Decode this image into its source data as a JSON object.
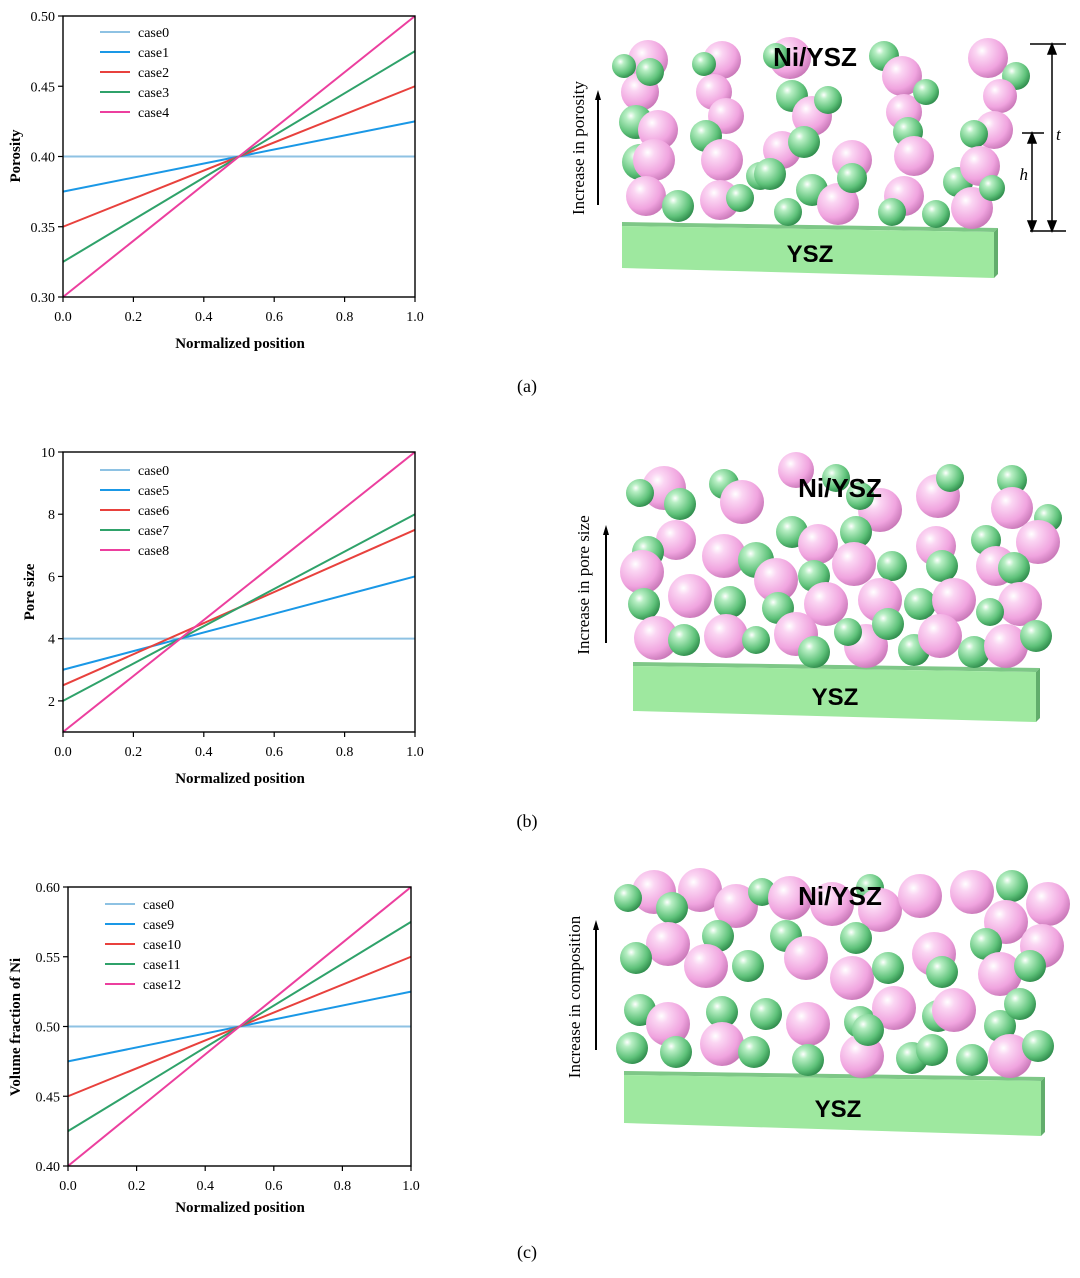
{
  "colors": {
    "case_a": "#8ec2e3",
    "case_b": "#1a98e6",
    "case_c": "#e8413d",
    "case_d": "#2fa26a",
    "case_e": "#ec3f9e",
    "ysz_front": "#9ee89f",
    "ysz_top": "#7ec787",
    "ysz_side": "#62ad6c",
    "sphere_pink": "#f4b2e6",
    "sphere_green": "#6fcf86"
  },
  "panels": [
    {
      "id": "a",
      "caption": "(a)",
      "ni_label": "Ni/YSZ",
      "ysz_label": "YSZ",
      "arrow_label": "Increase in porosity",
      "dim_t": "t",
      "dim_h": "h",
      "chart_data": {
        "type": "line",
        "title": "",
        "xlabel": "Normalized position",
        "ylabel": "Porosity",
        "xlim": [
          0.0,
          1.0
        ],
        "ylim": [
          0.3,
          0.5
        ],
        "xticks": [
          "0.0",
          "0.2",
          "0.4",
          "0.6",
          "0.8",
          "1.0"
        ],
        "yticks": [
          "0.30",
          "0.35",
          "0.40",
          "0.45",
          "0.50"
        ],
        "legend_loc": "top-left",
        "series": [
          {
            "name": "case0",
            "x": [
              0,
              1
            ],
            "y": [
              0.4,
              0.4
            ]
          },
          {
            "name": "case1",
            "x": [
              0,
              1
            ],
            "y": [
              0.375,
              0.425
            ]
          },
          {
            "name": "case2",
            "x": [
              0,
              1
            ],
            "y": [
              0.35,
              0.45
            ]
          },
          {
            "name": "case3",
            "x": [
              0,
              1
            ],
            "y": [
              0.325,
              0.475
            ]
          },
          {
            "name": "case4",
            "x": [
              0,
              1
            ],
            "y": [
              0.3,
              0.5
            ]
          }
        ]
      }
    },
    {
      "id": "b",
      "caption": "(b)",
      "ni_label": "Ni/YSZ",
      "ysz_label": "YSZ",
      "arrow_label": "Increase in pore size",
      "chart_data": {
        "type": "line",
        "title": "",
        "xlabel": "Normalized position",
        "ylabel": "Pore size",
        "xlim": [
          0.0,
          1.0
        ],
        "ylim": [
          1,
          10
        ],
        "xticks": [
          "0.0",
          "0.2",
          "0.4",
          "0.6",
          "0.8",
          "1.0"
        ],
        "yticks": [
          "2",
          "4",
          "6",
          "8",
          "10"
        ],
        "legend_loc": "top-left",
        "series": [
          {
            "name": "case0",
            "x": [
              0,
              1
            ],
            "y": [
              4,
              4
            ]
          },
          {
            "name": "case5",
            "x": [
              0,
              1
            ],
            "y": [
              3,
              6
            ]
          },
          {
            "name": "case6",
            "x": [
              0,
              1
            ],
            "y": [
              2.5,
              7.5
            ]
          },
          {
            "name": "case7",
            "x": [
              0,
              1
            ],
            "y": [
              2,
              8
            ]
          },
          {
            "name": "case8",
            "x": [
              0,
              1
            ],
            "y": [
              1,
              10
            ]
          }
        ]
      }
    },
    {
      "id": "c",
      "caption": "(c)",
      "ni_label": "Ni/YSZ",
      "ysz_label": "YSZ",
      "arrow_label": "Increase in composition",
      "chart_data": {
        "type": "line",
        "title": "",
        "xlabel": "Normalized position",
        "ylabel": "Volume fraction of Ni",
        "xlim": [
          0.0,
          1.0
        ],
        "ylim": [
          0.4,
          0.6
        ],
        "xticks": [
          "0.0",
          "0.2",
          "0.4",
          "0.6",
          "0.8",
          "1.0"
        ],
        "yticks": [
          "0.40",
          "0.45",
          "0.50",
          "0.55",
          "0.60"
        ],
        "legend_loc": "top-left",
        "series": [
          {
            "name": "case0",
            "x": [
              0,
              1
            ],
            "y": [
              0.5,
              0.5
            ]
          },
          {
            "name": "case9",
            "x": [
              0,
              1
            ],
            "y": [
              0.475,
              0.525
            ]
          },
          {
            "name": "case10",
            "x": [
              0,
              1
            ],
            "y": [
              0.45,
              0.55
            ]
          },
          {
            "name": "case11",
            "x": [
              0,
              1
            ],
            "y": [
              0.425,
              0.575
            ]
          },
          {
            "name": "case12",
            "x": [
              0,
              1
            ],
            "y": [
              0.4,
              0.6
            ]
          }
        ]
      }
    }
  ]
}
